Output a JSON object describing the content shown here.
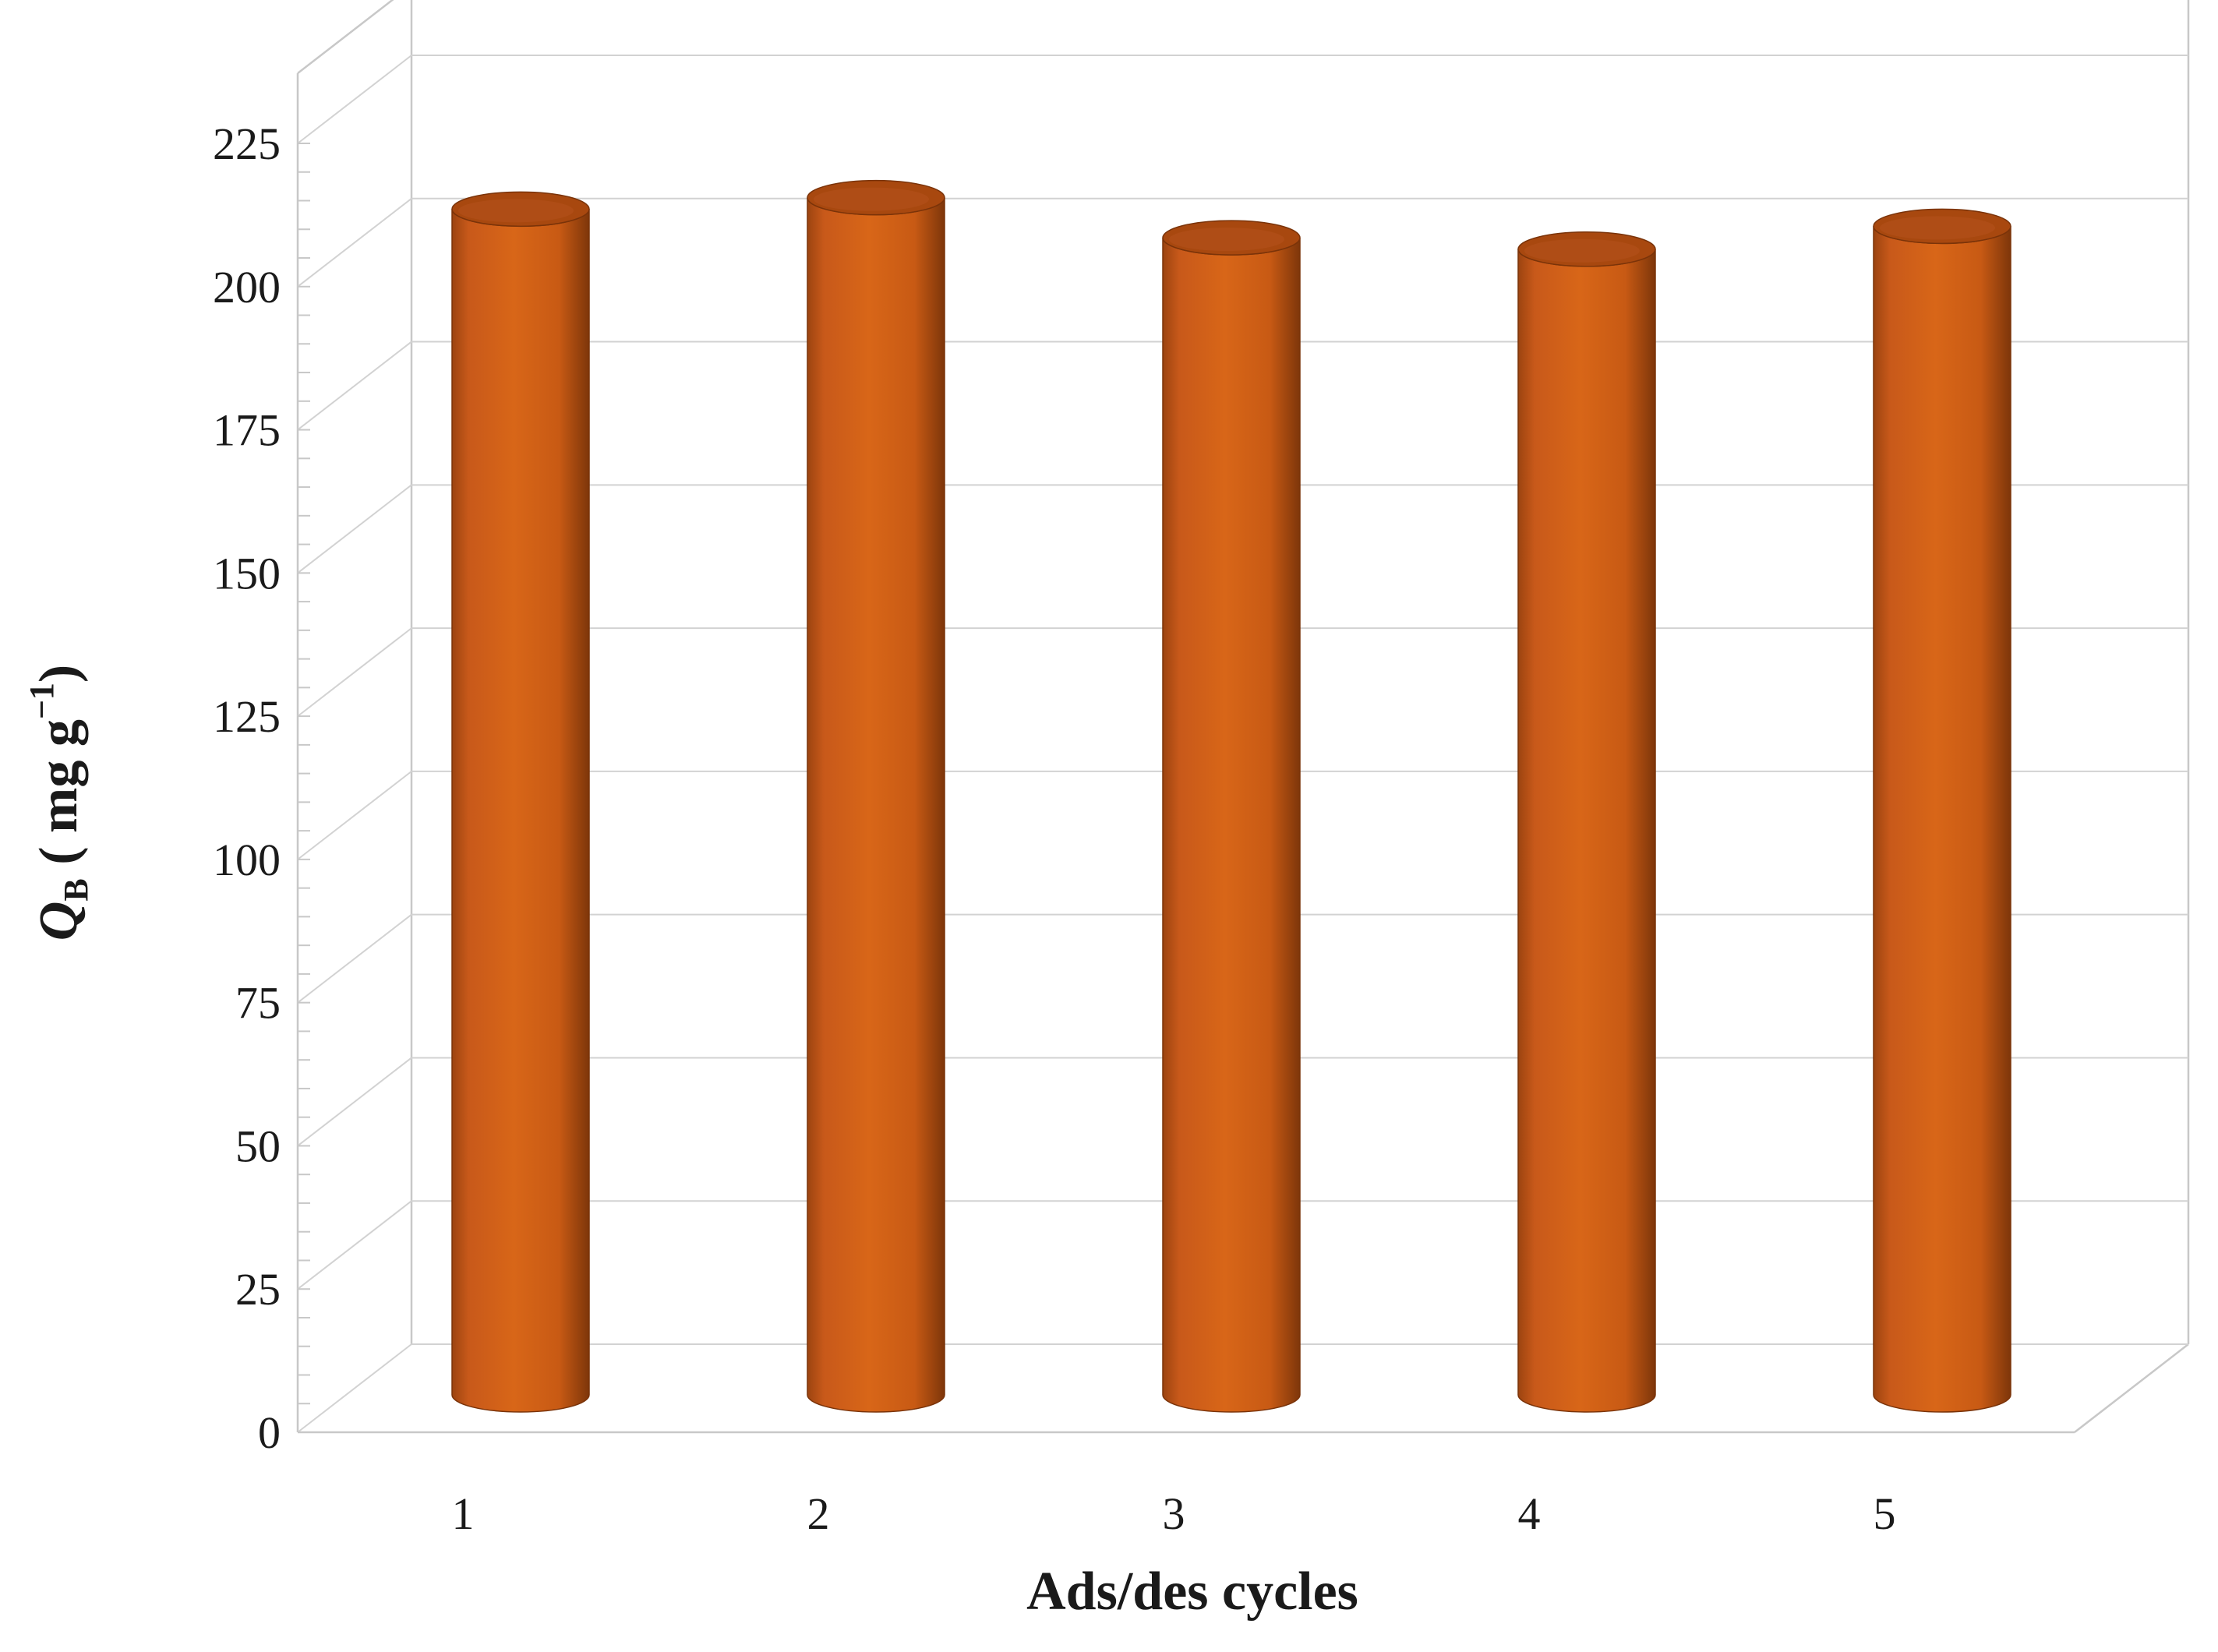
{
  "chart_data": {
    "type": "bar",
    "style": "3d-cylinder",
    "categories": [
      "1",
      "2",
      "3",
      "4",
      "5"
    ],
    "values": [
      207,
      209,
      202,
      200,
      204
    ],
    "xlabel": "Ads/des cycles",
    "ylabel": {
      "symbol": "Q",
      "subscript": "B",
      "unit_open": " ( mg g",
      "unit_exp": "−1",
      "unit_close": ")"
    },
    "ylim": [
      0,
      225
    ],
    "yticks": [
      0,
      25,
      50,
      75,
      100,
      125,
      150,
      175,
      200,
      225
    ],
    "grid": true,
    "legend": "none",
    "bar_color": "#D2601A",
    "bar_top_color": "#A8480F",
    "bar_edge_color": "#7A3309"
  }
}
